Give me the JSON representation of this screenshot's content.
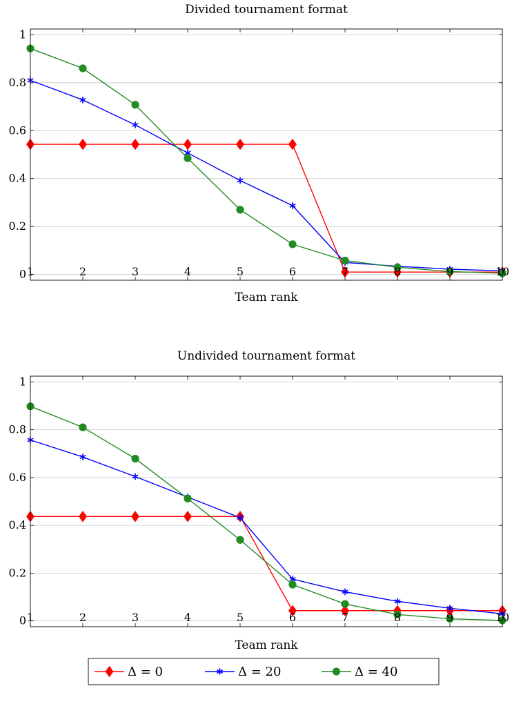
{
  "chart_data": [
    {
      "type": "line",
      "title": "Divided tournament format",
      "xlabel": "Team rank",
      "ylabel": "",
      "xlim": [
        1,
        10
      ],
      "ylim": [
        0,
        1
      ],
      "x": [
        1,
        2,
        3,
        4,
        5,
        6,
        7,
        8,
        9,
        10
      ],
      "x_ticks": [
        "1",
        "2",
        "3",
        "4",
        "5",
        "6",
        "7",
        "8",
        "9",
        "10"
      ],
      "y_ticks": [
        "0",
        "0.2",
        "0.4",
        "0.6",
        "0.8",
        "1"
      ],
      "grid": "horizontal",
      "series": [
        {
          "name": "Δ = 0",
          "color": "#ff0000",
          "marker": "diamond",
          "values": [
            0.543,
            0.543,
            0.543,
            0.543,
            0.543,
            0.543,
            0.01,
            0.01,
            0.01,
            0.01
          ]
        },
        {
          "name": "Δ = 20",
          "color": "#0000ff",
          "marker": "star",
          "values": [
            0.81,
            0.728,
            0.624,
            0.507,
            0.392,
            0.287,
            0.05,
            0.034,
            0.022,
            0.015
          ]
        },
        {
          "name": "Δ = 40",
          "color": "#228b22",
          "marker": "circle",
          "values": [
            0.943,
            0.86,
            0.708,
            0.485,
            0.27,
            0.126,
            0.058,
            0.03,
            0.012,
            0.005
          ]
        }
      ]
    },
    {
      "type": "line",
      "title": "Undivided tournament format",
      "xlabel": "Team rank",
      "ylabel": "",
      "xlim": [
        1,
        10
      ],
      "ylim": [
        0,
        1
      ],
      "x": [
        1,
        2,
        3,
        4,
        5,
        6,
        7,
        8,
        9,
        10
      ],
      "x_ticks": [
        "1",
        "2",
        "3",
        "4",
        "5",
        "6",
        "7",
        "8",
        "9",
        "10"
      ],
      "y_ticks": [
        "0",
        "0.2",
        "0.4",
        "0.6",
        "0.8",
        "1"
      ],
      "grid": "horizontal",
      "series": [
        {
          "name": "Δ = 0",
          "color": "#ff0000",
          "marker": "diamond",
          "values": [
            0.437,
            0.437,
            0.437,
            0.437,
            0.437,
            0.043,
            0.043,
            0.043,
            0.043,
            0.043
          ]
        },
        {
          "name": "Δ = 20",
          "color": "#0000ff",
          "marker": "star",
          "values": [
            0.757,
            0.686,
            0.604,
            0.518,
            0.432,
            0.175,
            0.122,
            0.082,
            0.053,
            0.03
          ]
        },
        {
          "name": "Δ = 40",
          "color": "#228b22",
          "marker": "circle",
          "values": [
            0.898,
            0.81,
            0.679,
            0.512,
            0.339,
            0.152,
            0.071,
            0.027,
            0.009,
            0.002
          ]
        }
      ]
    }
  ],
  "legend": {
    "placement": "bottom-center",
    "entries": [
      {
        "label": "Δ = 0",
        "color": "#ff0000",
        "marker": "diamond"
      },
      {
        "label": "Δ = 20",
        "color": "#0000ff",
        "marker": "star"
      },
      {
        "label": "Δ = 40",
        "color": "#228b22",
        "marker": "circle"
      }
    ]
  }
}
